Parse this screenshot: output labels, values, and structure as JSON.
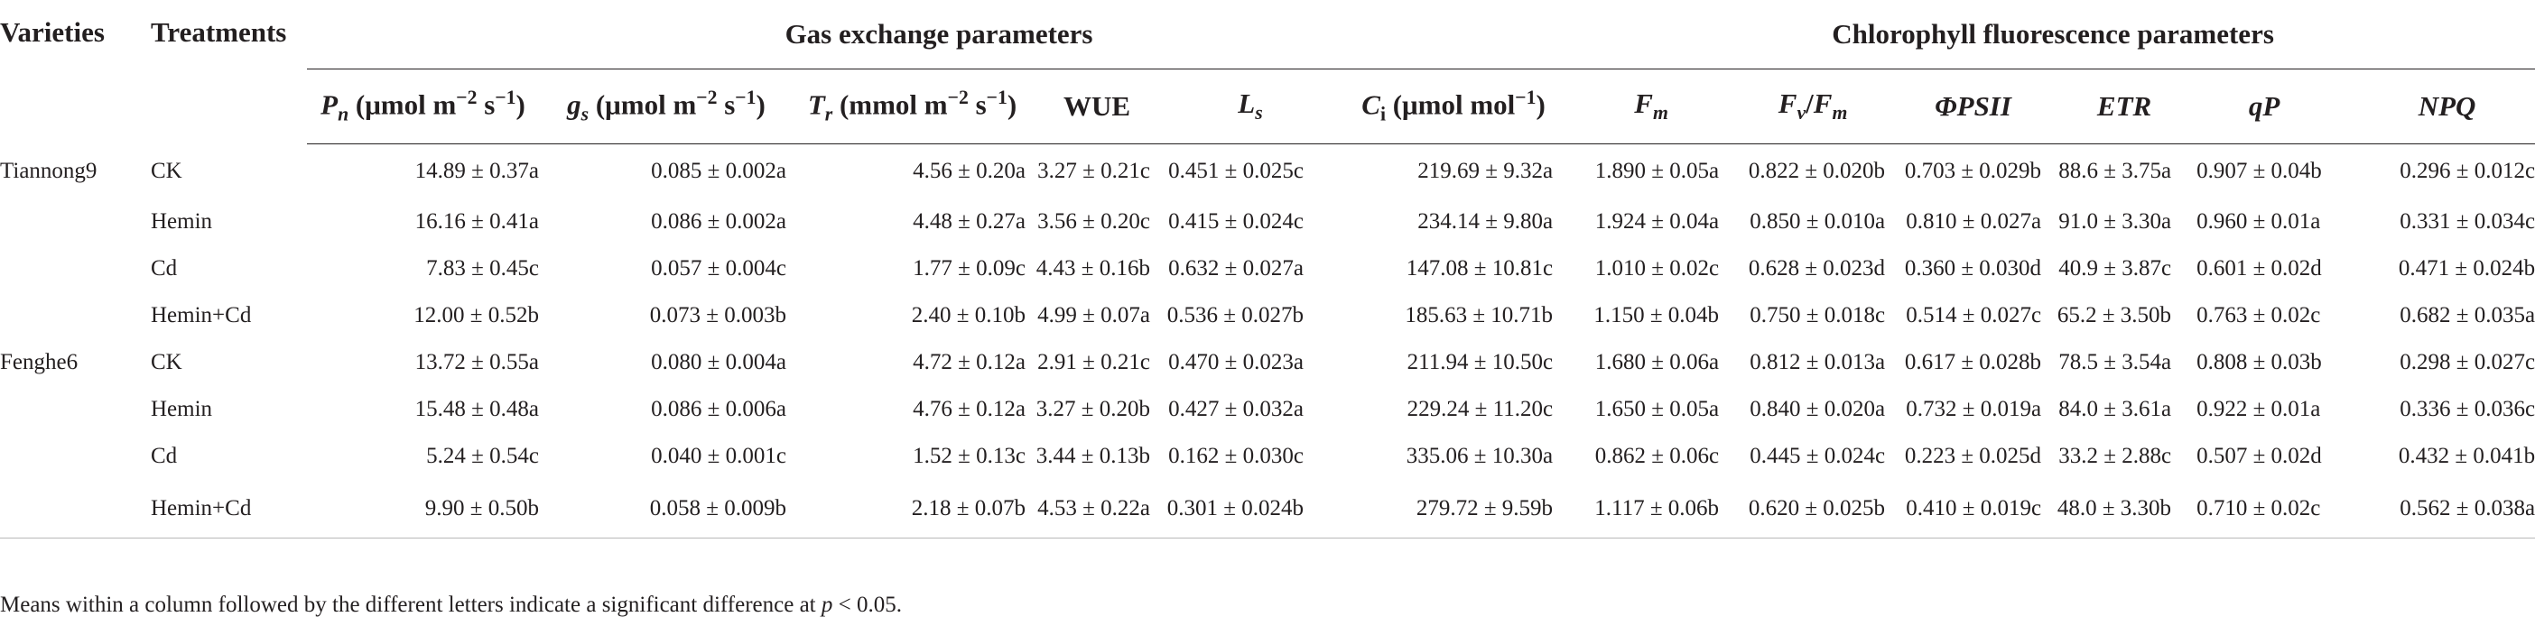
{
  "table": {
    "header": {
      "varieties": "Varieties",
      "treatments": "Treatments",
      "group_gas": "Gas exchange parameters",
      "group_fluor": "Chlorophyll fluorescence parameters",
      "columns": {
        "pn_sym": "P",
        "pn_sub": "n",
        "pn_unit": "(μmol m",
        "pn_sup1": "−2",
        "pn_mid": " s",
        "pn_sup2": "−1",
        "pn_end": ")",
        "gs_sym": "g",
        "gs_sub": "s",
        "gs_unit": "(μmol m",
        "gs_sup1": "−2",
        "gs_mid": " s",
        "gs_sup2": "−1",
        "gs_end": ")",
        "tr_sym": "T",
        "tr_sub": "r",
        "tr_unit": "(mmol m",
        "tr_sup1": "−2",
        "tr_mid": " s",
        "tr_sup2": "−1",
        "tr_end": ")",
        "wue": "WUE",
        "ls_sym": "L",
        "ls_sub": "s",
        "ci_sym": "C",
        "ci_sub": "i",
        "ci_unit": "(μmol mol",
        "ci_sup": "−1",
        "ci_end": ")",
        "fm_sym": "F",
        "fm_sub": "m",
        "fvfm_sym1": "F",
        "fvfm_sub1": "v",
        "fvfm_slash": "/",
        "fvfm_sym2": "F",
        "fvfm_sub2": "m",
        "phipsii": "ΦPSII",
        "etr": "ETR",
        "qp": "qP",
        "npq": "NPQ"
      }
    },
    "rows": [
      {
        "variety": "Tiannong9",
        "treatment": "CK",
        "pn": "14.89 ± 0.37a",
        "gs": "0.085 ± 0.002a",
        "tr": "4.56 ± 0.20a",
        "wue": "3.27 ± 0.21c",
        "ls": "0.451 ± 0.025c",
        "ci": "219.69 ± 9.32a",
        "fm": "1.890 ± 0.05a",
        "fvfm": "0.822 ± 0.020b",
        "phipsii": "0.703 ± 0.029b",
        "etr": "88.6 ± 3.75a",
        "qp": "0.907 ± 0.04b",
        "npq": "0.296 ± 0.012c"
      },
      {
        "variety": "",
        "treatment": "Hemin",
        "pn": "16.16 ± 0.41a",
        "gs": "0.086 ± 0.002a",
        "tr": "4.48 ± 0.27a",
        "wue": "3.56 ± 0.20c",
        "ls": "0.415 ± 0.024c",
        "ci": "234.14 ± 9.80a",
        "fm": "1.924 ± 0.04a",
        "fvfm": "0.850 ± 0.010a",
        "phipsii": "0.810 ± 0.027a",
        "etr": "91.0 ± 3.30a",
        "qp": "0.960 ± 0.01a",
        "npq": "0.331 ± 0.034c"
      },
      {
        "variety": "",
        "treatment": "Cd",
        "pn": "7.83 ± 0.45c",
        "gs": "0.057 ± 0.004c",
        "tr": "1.77 ± 0.09c",
        "wue": "4.43 ± 0.16b",
        "ls": "0.632 ± 0.027a",
        "ci": "147.08 ± 10.81c",
        "fm": "1.010 ± 0.02c",
        "fvfm": "0.628 ± 0.023d",
        "phipsii": "0.360 ± 0.030d",
        "etr": "40.9 ± 3.87c",
        "qp": "0.601 ± 0.02d",
        "npq": "0.471 ± 0.024b"
      },
      {
        "variety": "",
        "treatment": "Hemin+Cd",
        "pn": "12.00 ± 0.52b",
        "gs": "0.073 ± 0.003b",
        "tr": "2.40 ± 0.10b",
        "wue": "4.99 ± 0.07a",
        "ls": "0.536 ± 0.027b",
        "ci": "185.63 ± 10.71b",
        "fm": "1.150 ± 0.04b",
        "fvfm": "0.750 ± 0.018c",
        "phipsii": "0.514 ± 0.027c",
        "etr": "65.2 ± 3.50b",
        "qp": "0.763 ± 0.02c",
        "npq": "0.682 ± 0.035a"
      },
      {
        "variety": "Fenghe6",
        "treatment": "CK",
        "pn": "13.72 ± 0.55a",
        "gs": "0.080 ± 0.004a",
        "tr": "4.72 ± 0.12a",
        "wue": "2.91 ± 0.21c",
        "ls": "0.470 ± 0.023a",
        "ci": "211.94 ± 10.50c",
        "fm": "1.680 ± 0.06a",
        "fvfm": "0.812 ± 0.013a",
        "phipsii": "0.617 ± 0.028b",
        "etr": "78.5 ± 3.54a",
        "qp": "0.808 ± 0.03b",
        "npq": "0.298 ± 0.027c"
      },
      {
        "variety": "",
        "treatment": "Hemin",
        "pn": "15.48 ± 0.48a",
        "gs": "0.086 ± 0.006a",
        "tr": "4.76 ± 0.12a",
        "wue": "3.27 ± 0.20b",
        "ls": "0.427 ± 0.032a",
        "ci": "229.24 ± 11.20c",
        "fm": "1.650 ± 0.05a",
        "fvfm": "0.840 ± 0.020a",
        "phipsii": "0.732 ± 0.019a",
        "etr": "84.0 ± 3.61a",
        "qp": "0.922 ± 0.01a",
        "npq": "0.336 ± 0.036c"
      },
      {
        "variety": "",
        "treatment": "Cd",
        "pn": "5.24 ± 0.54c",
        "gs": "0.040 ± 0.001c",
        "tr": "1.52 ± 0.13c",
        "wue": "3.44 ± 0.13b",
        "ls": "0.162 ± 0.030c",
        "ci": "335.06 ± 10.30a",
        "fm": "0.862 ± 0.06c",
        "fvfm": "0.445 ± 0.024c",
        "phipsii": "0.223 ± 0.025d",
        "etr": "33.2 ± 2.88c",
        "qp": "0.507 ± 0.02d",
        "npq": "0.432 ± 0.041b"
      },
      {
        "variety": "",
        "treatment": "Hemin+Cd",
        "pn": "9.90 ± 0.50b",
        "gs": "0.058 ± 0.009b",
        "tr": "2.18 ± 0.07b",
        "wue": "4.53 ± 0.22a",
        "ls": "0.301 ± 0.024b",
        "ci": "279.72 ± 9.59b",
        "fm": "1.117 ± 0.06b",
        "fvfm": "0.620 ± 0.025b",
        "phipsii": "0.410 ± 0.019c",
        "etr": "48.0 ± 3.30b",
        "qp": "0.710 ± 0.02c",
        "npq": "0.562 ± 0.038a"
      }
    ]
  },
  "footnote": {
    "text": "Means within a column followed by the different letters indicate a significant difference at ",
    "p_sym": "p",
    "p_rest": " < 0.05."
  }
}
